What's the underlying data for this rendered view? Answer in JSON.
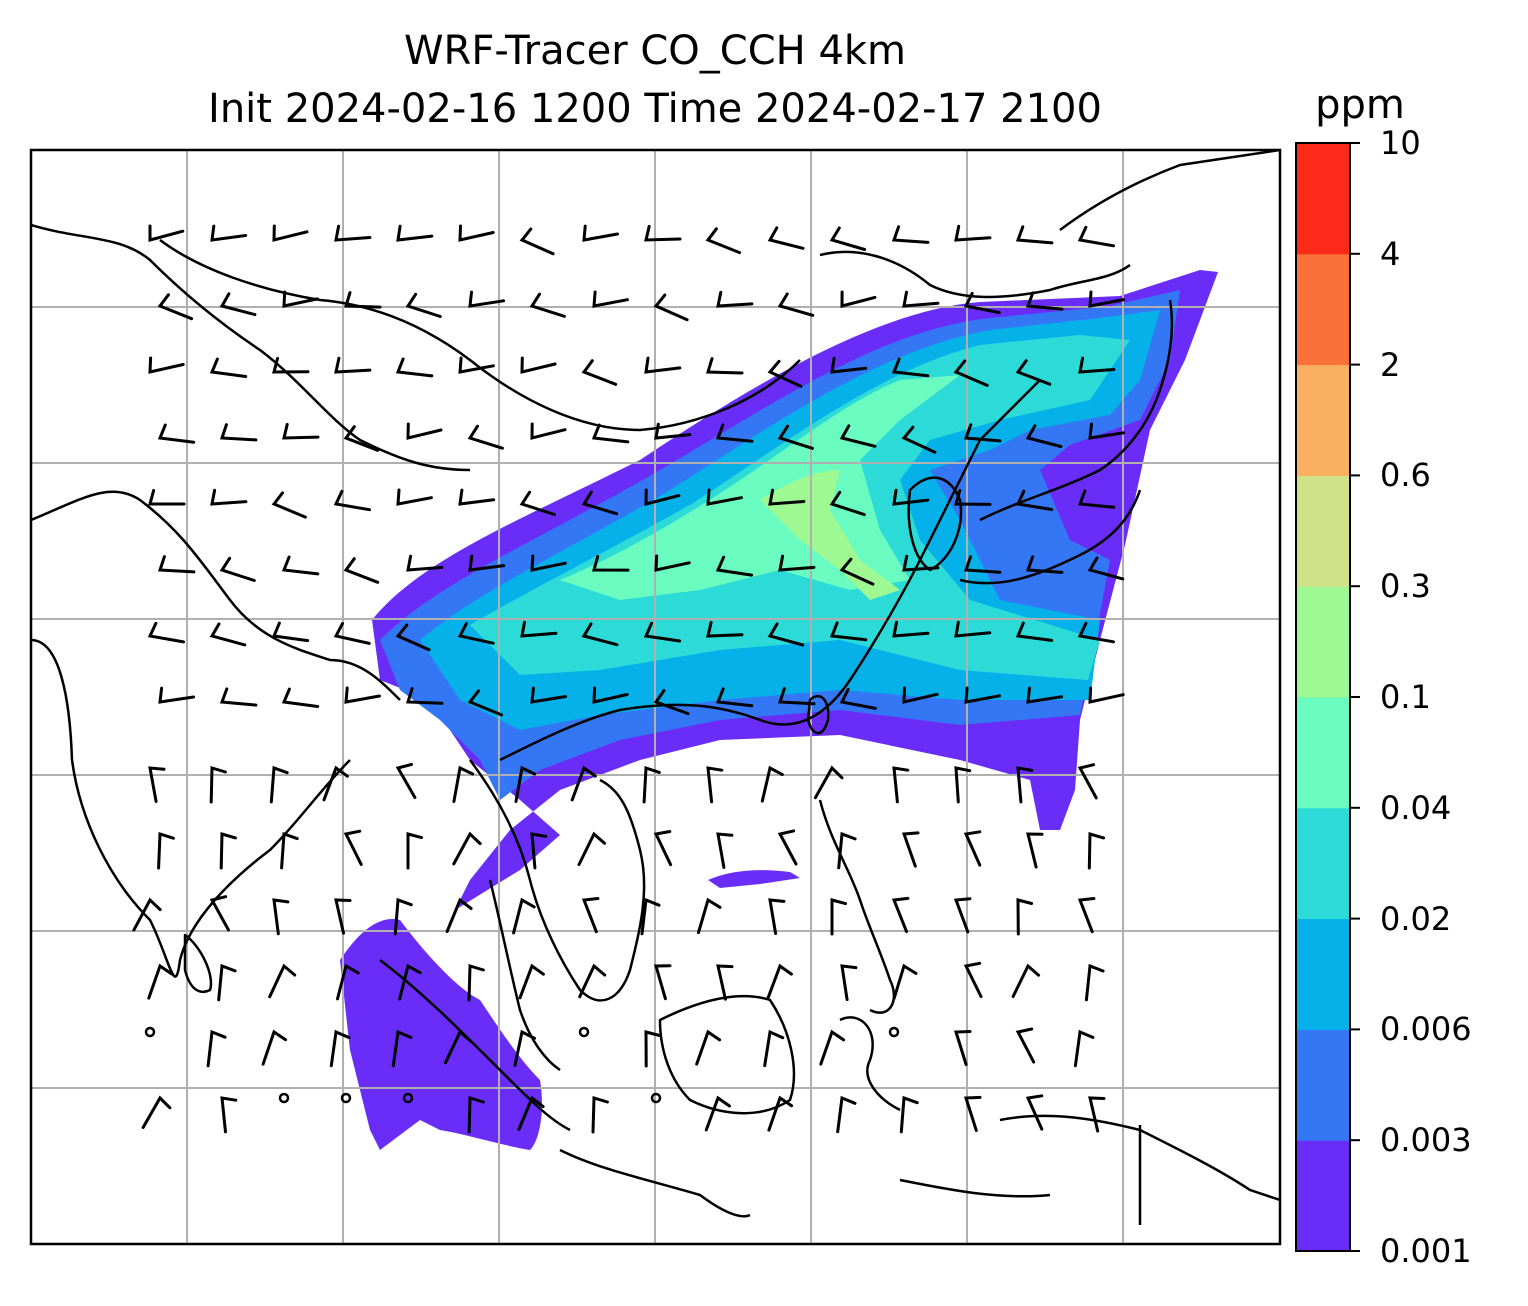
{
  "title": {
    "line1": "WRF-Tracer CO_CCH 4km",
    "line2": "Init 2024-02-16 1200 Time 2024-02-17 2100"
  },
  "colorbar": {
    "unit": "ppm",
    "ticks": [
      "0.001",
      "0.003",
      "0.006",
      "0.02",
      "0.04",
      "0.1",
      "0.3",
      "0.6",
      "2",
      "4",
      "10"
    ],
    "colors": [
      "#6a2cf7",
      "#3477f4",
      "#06b1ea",
      "#2cdbd7",
      "#69fbbf",
      "#9ef993",
      "#d1e187",
      "#fbb061",
      "#fc7039",
      "#fc2a18"
    ]
  },
  "map": {
    "gridlines": true,
    "coastline_color": "#000000",
    "grid_color": "#b0b0b0",
    "plume_levels": [
      "0.001",
      "0.003",
      "0.006",
      "0.02",
      "0.04",
      "0.1"
    ],
    "wind_barbs": true
  }
}
